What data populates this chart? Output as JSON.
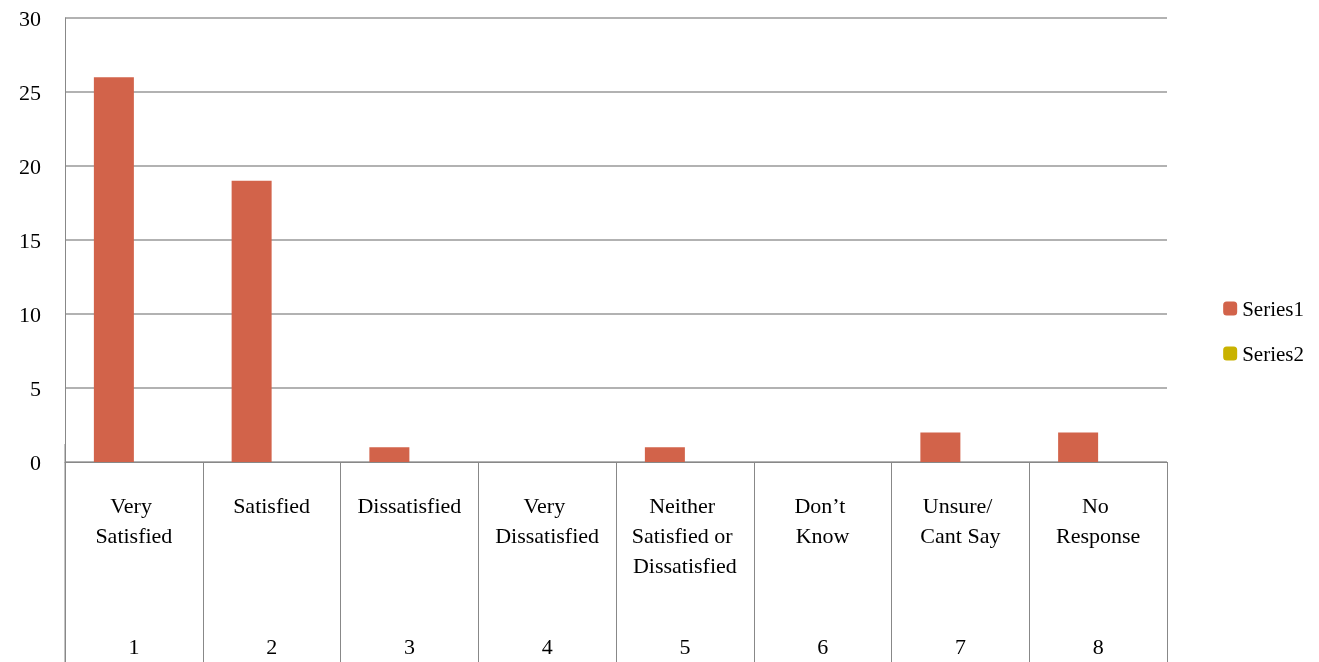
{
  "chart_data": {
    "type": "bar",
    "categories": [
      "Very Satisfied",
      "Satisfied",
      "Dissatisfied",
      "Very Dissatisfied",
      "Neither Satisfied or Dissatisfied",
      "Don’t Know",
      "Unsure/ Cant Say",
      "No Response"
    ],
    "series": [
      {
        "name": "Series1",
        "color": "#d2634a",
        "values": [
          26,
          19,
          1,
          0,
          1,
          0,
          2,
          2
        ]
      },
      {
        "name": "Series2",
        "color": "#c9b200",
        "values": [
          null,
          null,
          null,
          null,
          null,
          null,
          null,
          null
        ]
      }
    ],
    "annotations": [
      "1",
      "2",
      "3",
      "4",
      "5",
      "6",
      "7",
      "8"
    ],
    "ylim": [
      0,
      30
    ],
    "yticks": [
      0,
      5,
      10,
      15,
      20,
      25,
      30
    ],
    "grid": "y",
    "legend": "right"
  }
}
